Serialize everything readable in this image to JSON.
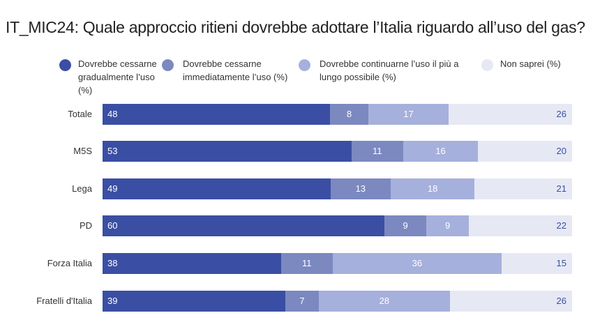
{
  "chart_data": {
    "type": "bar",
    "orientation": "horizontal",
    "stacked": true,
    "title": "IT_MIC24: Quale approccio ritieni dovrebbe adottare l’Italia riguardo all’uso del gas?",
    "legend_position": "top",
    "grid": false,
    "categories": [
      "Totale",
      "M5S",
      "Lega",
      "PD",
      "Forza Italia",
      "Fratelli d'Italia"
    ],
    "series": [
      {
        "name": "Dovrebbe cessarne gradualmente l’uso (%)",
        "color": "#3a4fa3",
        "values": [
          48,
          53,
          49,
          60,
          38,
          39
        ]
      },
      {
        "name": "Dovrebbe cessarne immediatamente l’uso (%)",
        "color": "#7b89c0",
        "values": [
          8,
          11,
          13,
          9,
          11,
          7
        ]
      },
      {
        "name": "Dovrebbe continuarne l’uso il più a lungo possibile  (%)",
        "color": "#a6b0dc",
        "values": [
          17,
          16,
          18,
          9,
          36,
          28
        ]
      },
      {
        "name": "Non saprei (%)",
        "color": "#e6e9f4",
        "values": [
          26,
          20,
          21,
          22,
          15,
          26
        ]
      }
    ]
  }
}
